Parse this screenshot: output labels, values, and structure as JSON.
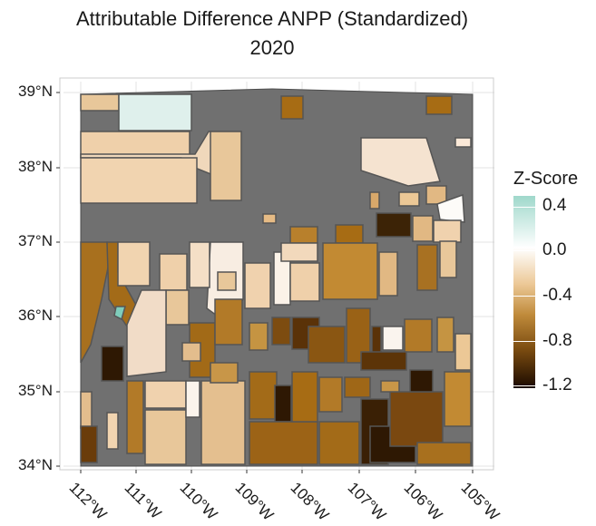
{
  "title": {
    "line1": "Attributable Difference ANPP (Standardized)",
    "line2": "2020"
  },
  "axes": {
    "y_ticks": [
      "39°N",
      "38°N",
      "37°N",
      "36°N",
      "35°N",
      "34°N"
    ],
    "x_ticks": [
      "112°W",
      "111°W",
      "110°W",
      "109°W",
      "108°W",
      "107°W",
      "106°W",
      "105°W"
    ],
    "lon_range": [
      -112,
      -105
    ],
    "lat_range": [
      34,
      39
    ],
    "grid": true
  },
  "legend": {
    "title": "Z-Score",
    "labels": [
      "0.4",
      "0.0",
      "-0.4",
      "-0.8",
      "-1.2"
    ],
    "colors": {
      "high": "#9fd8cb",
      "zero": "#ffffff",
      "low": "#1a0a00",
      "no_data": "#707070"
    }
  },
  "chart_data": {
    "type": "choropleth",
    "variable": "Z-Score",
    "region": {
      "lon_min": -112,
      "lon_max": -105,
      "lat_min": 34,
      "lat_max": 39
    }
  }
}
